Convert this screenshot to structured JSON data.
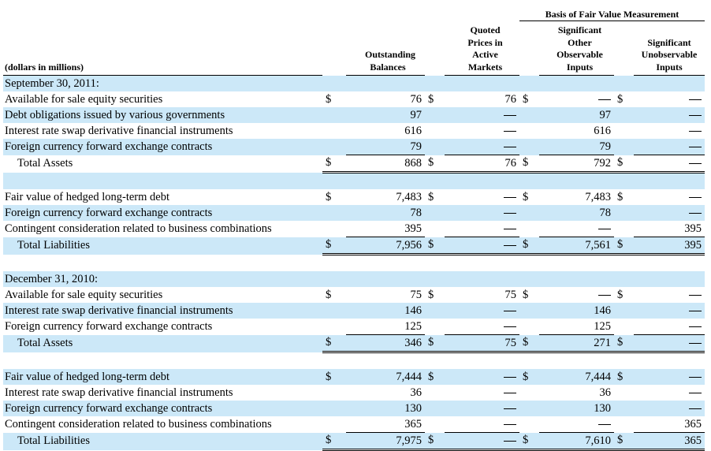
{
  "header": {
    "group_title": "Basis of Fair Value Measurement",
    "unit_label": "(dollars in millions)",
    "col_outstanding": "Outstanding Balances",
    "col_quoted": "Quoted Prices in Active Markets",
    "col_significant_other": "Significant Other Observable Inputs",
    "col_unobservable": "Significant Unobservable Inputs"
  },
  "sections": [
    {
      "period": "September 30, 2011:",
      "assets": {
        "rows": [
          {
            "label": "Available for sale equity securities",
            "outstanding": "76",
            "quoted": "76",
            "other": "—",
            "unobs": "—"
          },
          {
            "label": "Debt obligations issued by various governments",
            "outstanding": "97",
            "quoted": "—",
            "other": "97",
            "unobs": "—"
          },
          {
            "label": "Interest rate swap derivative financial instruments",
            "outstanding": "616",
            "quoted": "—",
            "other": "616",
            "unobs": "—"
          },
          {
            "label": "Foreign currency forward exchange contracts",
            "outstanding": "79",
            "quoted": "—",
            "other": "79",
            "unobs": "—"
          }
        ],
        "total": {
          "label": "Total Assets",
          "outstanding": "868",
          "quoted": "76",
          "other": "792",
          "unobs": "—"
        }
      },
      "liabilities": {
        "rows": [
          {
            "label": "Fair value of hedged long-term debt",
            "outstanding": "7,483",
            "quoted": "—",
            "other": "7,483",
            "unobs": "—"
          },
          {
            "label": "Foreign currency forward exchange contracts",
            "outstanding": "78",
            "quoted": "—",
            "other": "78",
            "unobs": "—"
          },
          {
            "label": "Contingent consideration related to business combinations",
            "outstanding": "395",
            "quoted": "—",
            "other": "—",
            "unobs": "395"
          }
        ],
        "total": {
          "label": "Total Liabilities",
          "outstanding": "7,956",
          "quoted": "—",
          "other": "7,561",
          "unobs": "395"
        }
      }
    },
    {
      "period": "December 31, 2010:",
      "assets": {
        "rows": [
          {
            "label": "Available for sale equity securities",
            "outstanding": "75",
            "quoted": "75",
            "other": "—",
            "unobs": "—"
          },
          {
            "label": "Interest rate swap derivative financial instruments",
            "outstanding": "146",
            "quoted": "—",
            "other": "146",
            "unobs": "—"
          },
          {
            "label": "Foreign currency forward exchange contracts",
            "outstanding": "125",
            "quoted": "—",
            "other": "125",
            "unobs": "—"
          }
        ],
        "total": {
          "label": "Total Assets",
          "outstanding": "346",
          "quoted": "75",
          "other": "271",
          "unobs": "—"
        }
      },
      "liabilities": {
        "rows": [
          {
            "label": "Fair value of hedged long-term debt",
            "outstanding": "7,444",
            "quoted": "—",
            "other": "7,444",
            "unobs": "—"
          },
          {
            "label": "Interest rate swap derivative financial instruments",
            "outstanding": "36",
            "quoted": "—",
            "other": "36",
            "unobs": "—"
          },
          {
            "label": "Foreign currency forward exchange contracts",
            "outstanding": "130",
            "quoted": "—",
            "other": "130",
            "unobs": "—"
          },
          {
            "label": "Contingent consideration related to business combinations",
            "outstanding": "365",
            "quoted": "—",
            "other": "—",
            "unobs": "365"
          }
        ],
        "total": {
          "label": "Total Liabilities",
          "outstanding": "7,975",
          "quoted": "—",
          "other": "7,610",
          "unobs": "365"
        }
      }
    }
  ],
  "currency_symbol": "$",
  "colors": {
    "row_shade": "#cce8f8"
  }
}
